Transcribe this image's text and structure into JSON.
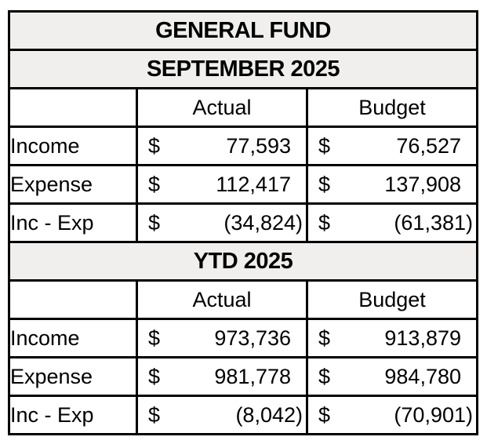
{
  "title": "GENERAL FUND",
  "currency_symbol": "$",
  "colors": {
    "header_background": "#f0efed",
    "cell_background": "#ffffff",
    "border": "#000000",
    "text": "#000000"
  },
  "sections": [
    {
      "heading": "SEPTEMBER 2025",
      "columns": {
        "actual": "Actual",
        "budget": "Budget"
      },
      "rows": [
        {
          "label": "Income",
          "actual": "77,593",
          "budget": "76,527"
        },
        {
          "label": "Expense",
          "actual": "112,417",
          "budget": "137,908"
        },
        {
          "label": "Inc - Exp",
          "actual": "(34,824)",
          "budget": "(61,381)"
        }
      ]
    },
    {
      "heading": "YTD 2025",
      "columns": {
        "actual": "Actual",
        "budget": "Budget"
      },
      "rows": [
        {
          "label": "Income",
          "actual": "973,736",
          "budget": "913,879"
        },
        {
          "label": "Expense",
          "actual": "981,778",
          "budget": "984,780"
        },
        {
          "label": "Inc - Exp",
          "actual": "(8,042)",
          "budget": "(70,901)"
        }
      ]
    }
  ]
}
